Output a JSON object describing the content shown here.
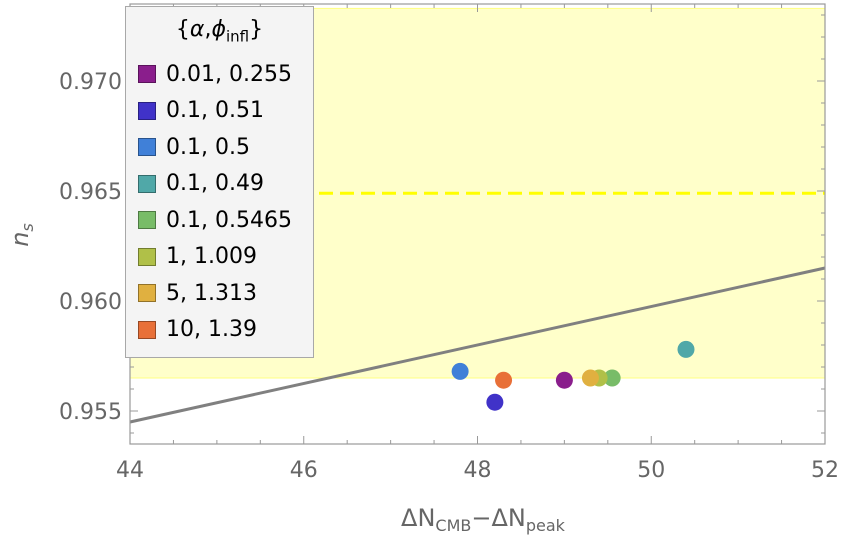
{
  "chart_data": {
    "type": "scatter",
    "xlabel": {
      "base": "ΔN",
      "sub1": "CMB",
      "sep": "−ΔN",
      "sub2": "peak"
    },
    "ylabel": {
      "base": "n",
      "sub": "s"
    },
    "xlim": [
      44,
      52
    ],
    "ylim": [
      0.9535,
      0.9735
    ],
    "x_ticks": [
      44,
      46,
      48,
      50,
      52
    ],
    "x_tick_labels": [
      "44",
      "46",
      "48",
      "50",
      "52"
    ],
    "y_ticks": [
      0.955,
      0.96,
      0.965,
      0.97
    ],
    "y_tick_labels": [
      "0.955",
      "0.960",
      "0.965",
      "0.970"
    ],
    "band": {
      "y_low": 0.9565,
      "y_high": 0.9733,
      "color": "#ffff80"
    },
    "dashed_line": {
      "y": 0.9649,
      "color": "#ffff00"
    },
    "trend_line": {
      "x": [
        44,
        52
      ],
      "y": [
        0.9545,
        0.9615
      ],
      "color": "#808080"
    },
    "legend_title": {
      "open": "{",
      "alpha": "α",
      "comma": ",",
      "phi": "ϕ",
      "sub": "infl",
      "close": "}"
    },
    "legend_position": "top-left",
    "series": [
      {
        "name": "0.01, 0.255",
        "color": "#8a1e8c",
        "x": [
          49.0
        ],
        "y": [
          0.9564
        ]
      },
      {
        "name": "0.1, 0.51",
        "color": "#4032c8",
        "x": [
          48.2
        ],
        "y": [
          0.9554
        ]
      },
      {
        "name": "0.1, 0.5",
        "color": "#4080d8",
        "x": [
          47.8
        ],
        "y": [
          0.9568
        ]
      },
      {
        "name": "0.1, 0.49",
        "color": "#50a8a8",
        "x": [
          50.4
        ],
        "y": [
          0.9578
        ]
      },
      {
        "name": "0.1, 0.5465",
        "color": "#78bc68",
        "x": [
          49.55
        ],
        "y": [
          0.9565
        ]
      },
      {
        "name": "1, 1.009",
        "color": "#b0c048",
        "x": [
          49.4
        ],
        "y": [
          0.9565
        ]
      },
      {
        "name": "5, 1.313",
        "color": "#e0b040",
        "x": [
          49.3
        ],
        "y": [
          0.9565
        ]
      },
      {
        "name": "10, 1.39",
        "color": "#e87038",
        "x": [
          48.3
        ],
        "y": [
          0.9564
        ]
      }
    ]
  }
}
